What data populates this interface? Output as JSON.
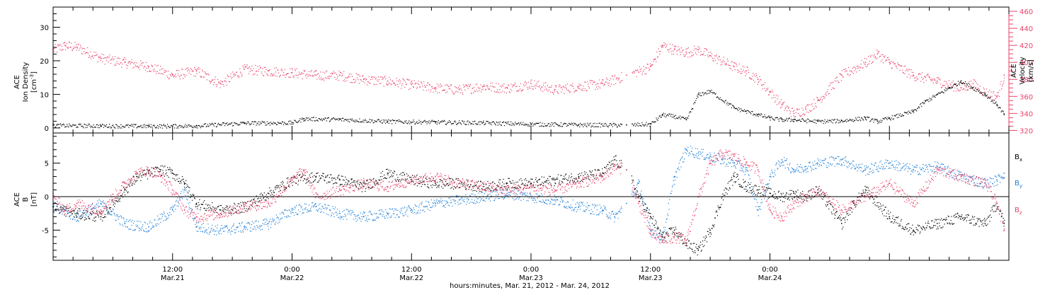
{
  "colors": {
    "black": "#000000",
    "blue": "#1e7fd6",
    "red": "#e8436a"
  },
  "chart_data": [
    {
      "type": "scatter",
      "panel": "top",
      "ylabel_left": [
        "ACE",
        "Ion Density",
        "[cm",
        "-3",
        "]"
      ],
      "ylabel_right": [
        "ACE",
        "Velocity",
        "[km/s]"
      ],
      "y_left_range": [
        -1.5,
        36
      ],
      "y_left_ticks": [
        "0",
        "10",
        "20",
        "30"
      ],
      "y_right_range": [
        317,
        465
      ],
      "y_right_ticks": [
        "320",
        "340",
        "360",
        "380",
        "400",
        "420",
        "440",
        "460"
      ],
      "x_range_days": [
        0,
        4
      ],
      "series": [
        {
          "axis": "left",
          "color": "black",
          "x": [
            0.0,
            0.2,
            0.4,
            0.6,
            0.8,
            1.0,
            1.05,
            1.2,
            1.4,
            1.6,
            1.8,
            2.0,
            2.2,
            2.4,
            2.5,
            2.55,
            2.6,
            2.65,
            2.7,
            2.75,
            2.85,
            2.9,
            2.95,
            3.0,
            3.05,
            3.1,
            3.2,
            3.3,
            3.4,
            3.45,
            3.5,
            3.6,
            3.65,
            3.7,
            3.75,
            3.8,
            3.85,
            3.9,
            3.95,
            3.98
          ],
          "y": [
            0.8,
            0.7,
            0.6,
            0.7,
            1.5,
            1.6,
            2.8,
            2.6,
            2.0,
            1.8,
            1.6,
            1.2,
            1.0,
            0.9,
            1.2,
            4.0,
            3.5,
            2.5,
            10.0,
            11.0,
            6.0,
            5.0,
            4.0,
            3.0,
            2.5,
            2.5,
            2.0,
            2.2,
            3.0,
            2.0,
            3.0,
            5.0,
            8.0,
            10.0,
            12.0,
            14.0,
            12.0,
            10.0,
            7.0,
            4.0
          ]
        },
        {
          "axis": "right",
          "color": "red",
          "x": [
            0.0,
            0.05,
            0.1,
            0.2,
            0.3,
            0.4,
            0.5,
            0.6,
            0.7,
            0.8,
            0.9,
            1.0,
            1.1,
            1.2,
            1.3,
            1.4,
            1.5,
            1.6,
            1.7,
            1.8,
            1.9,
            2.0,
            2.1,
            2.2,
            2.3,
            2.4,
            2.5,
            2.55,
            2.6,
            2.65,
            2.7,
            2.75,
            2.85,
            2.9,
            2.95,
            3.0,
            3.05,
            3.1,
            3.15,
            3.2,
            3.3,
            3.4,
            3.45,
            3.5,
            3.6,
            3.7,
            3.8,
            3.85,
            3.9,
            3.95,
            3.98
          ],
          "y": [
            415,
            420,
            418,
            405,
            400,
            395,
            385,
            390,
            375,
            392,
            390,
            388,
            385,
            385,
            380,
            378,
            374,
            370,
            368,
            372,
            370,
            375,
            368,
            372,
            375,
            385,
            395,
            420,
            415,
            412,
            415,
            408,
            395,
            390,
            380,
            365,
            350,
            340,
            345,
            355,
            385,
            400,
            410,
            400,
            385,
            378,
            370,
            375,
            365,
            360,
            385
          ]
        }
      ]
    },
    {
      "type": "scatter",
      "panel": "bottom",
      "ylabel_left": [
        "ACE",
        "B",
        "[nT]"
      ],
      "y_range": [
        -9.5,
        9.5
      ],
      "y_ticks": [
        "5",
        "0",
        "-5"
      ],
      "legend": [
        "B",
        "B",
        "B"
      ],
      "legend_subscripts": [
        "x",
        "y",
        "z"
      ],
      "x_range_days": [
        0,
        4
      ],
      "series": [
        {
          "name": "B",
          "color": "black",
          "x": [
            0.0,
            0.1,
            0.2,
            0.3,
            0.35,
            0.4,
            0.45,
            0.5,
            0.55,
            0.6,
            0.7,
            0.8,
            0.9,
            1.0,
            1.1,
            1.2,
            1.3,
            1.4,
            1.5,
            1.6,
            1.7,
            1.8,
            1.9,
            2.0,
            2.1,
            2.2,
            2.3,
            2.35,
            2.4,
            2.45,
            2.5,
            2.55,
            2.6,
            2.65,
            2.7,
            2.75,
            2.8,
            2.85,
            2.9,
            2.95,
            3.0,
            3.05,
            3.1,
            3.15,
            3.2,
            3.3,
            3.35,
            3.4,
            3.5,
            3.6,
            3.7,
            3.8,
            3.9,
            3.95,
            3.98
          ],
          "y": [
            -1.5,
            -2.5,
            -3.0,
            1.0,
            3.0,
            3.5,
            4.0,
            3.5,
            2.0,
            -1.0,
            -2.0,
            -1.5,
            0.5,
            2.5,
            3.0,
            2.5,
            1.5,
            3.5,
            2.5,
            2.0,
            2.0,
            1.5,
            2.0,
            2.0,
            2.5,
            3.0,
            3.5,
            5.5,
            4.0,
            0.0,
            -3.0,
            -6.0,
            -5.0,
            -7.0,
            -8.0,
            -5.0,
            0.0,
            3.0,
            1.5,
            1.0,
            0.5,
            0.0,
            0.5,
            0.0,
            1.0,
            -4.0,
            -1.0,
            1.0,
            -3.0,
            -5.0,
            -4.0,
            -3.0,
            -4.0,
            -1.0,
            -4.0
          ]
        },
        {
          "name": "B",
          "color": "blue",
          "x": [
            0.0,
            0.1,
            0.2,
            0.3,
            0.4,
            0.5,
            0.55,
            0.6,
            0.7,
            0.8,
            0.9,
            1.0,
            1.1,
            1.2,
            1.3,
            1.4,
            1.5,
            1.6,
            1.7,
            1.8,
            1.9,
            2.0,
            2.1,
            2.2,
            2.3,
            2.35,
            2.4,
            2.45,
            2.5,
            2.55,
            2.6,
            2.65,
            2.7,
            2.75,
            2.8,
            2.85,
            2.9,
            2.95,
            3.0,
            3.05,
            3.1,
            3.15,
            3.2,
            3.3,
            3.4,
            3.5,
            3.6,
            3.7,
            3.8,
            3.9,
            3.95,
            3.98
          ],
          "y": [
            -1.5,
            -3.0,
            -1.0,
            -4.0,
            -4.5,
            -2.0,
            1.0,
            -4.5,
            -5.0,
            -4.5,
            -4.0,
            -2.0,
            -1.5,
            -2.5,
            -3.0,
            -2.5,
            -2.0,
            -1.0,
            -0.5,
            0.0,
            0.5,
            0.0,
            -0.5,
            -1.5,
            -2.0,
            -3.0,
            -1.0,
            2.0,
            -5.0,
            -6.0,
            3.0,
            7.0,
            6.5,
            6.0,
            5.5,
            5.0,
            4.0,
            -2.0,
            3.0,
            5.5,
            4.0,
            4.5,
            5.0,
            5.5,
            4.0,
            5.0,
            4.0,
            4.5,
            3.0,
            2.0,
            2.5,
            3.5
          ]
        },
        {
          "name": "B",
          "color": "red",
          "x": [
            0.0,
            0.05,
            0.1,
            0.2,
            0.3,
            0.35,
            0.4,
            0.45,
            0.5,
            0.55,
            0.6,
            0.7,
            0.8,
            0.9,
            1.0,
            1.05,
            1.1,
            1.2,
            1.3,
            1.4,
            1.5,
            1.6,
            1.7,
            1.8,
            1.9,
            2.0,
            2.1,
            2.2,
            2.3,
            2.35,
            2.4,
            2.45,
            2.5,
            2.55,
            2.6,
            2.65,
            2.7,
            2.75,
            2.8,
            2.85,
            2.9,
            2.95,
            3.0,
            3.05,
            3.1,
            3.15,
            3.2,
            3.3,
            3.4,
            3.5,
            3.6,
            3.7,
            3.8,
            3.9,
            3.95,
            3.98
          ],
          "y": [
            0.0,
            -2.0,
            -1.0,
            -2.0,
            2.0,
            3.5,
            4.0,
            3.0,
            1.0,
            -2.0,
            -3.0,
            -2.5,
            -1.5,
            -1.0,
            2.5,
            4.0,
            0.0,
            1.0,
            2.0,
            1.5,
            2.5,
            3.0,
            2.0,
            1.5,
            1.0,
            1.5,
            1.0,
            2.0,
            3.0,
            4.5,
            4.0,
            -1.0,
            -5.5,
            -6.5,
            -6.0,
            -6.5,
            0.0,
            5.0,
            6.5,
            6.0,
            5.0,
            4.0,
            -2.0,
            -3.0,
            -1.0,
            0.0,
            1.0,
            -2.0,
            0.0,
            2.0,
            -1.0,
            4.0,
            3.0,
            2.0,
            -1.0,
            -5.0
          ]
        }
      ]
    }
  ],
  "x_axis": {
    "tick_labels_time": [
      "12:00",
      "0:00",
      "12:00",
      "0:00",
      "12:00",
      "0:00"
    ],
    "tick_labels_date": [
      "Mar.21",
      "Mar.22",
      "Mar.22",
      "Mar.23",
      "Mar.23",
      "Mar.24"
    ],
    "tick_positions_days": [
      0.5,
      1.0,
      1.5,
      2.0,
      2.5,
      3.0
    ],
    "title": "hours:minutes, Mar. 21, 2012 - Mar. 24, 2012"
  }
}
